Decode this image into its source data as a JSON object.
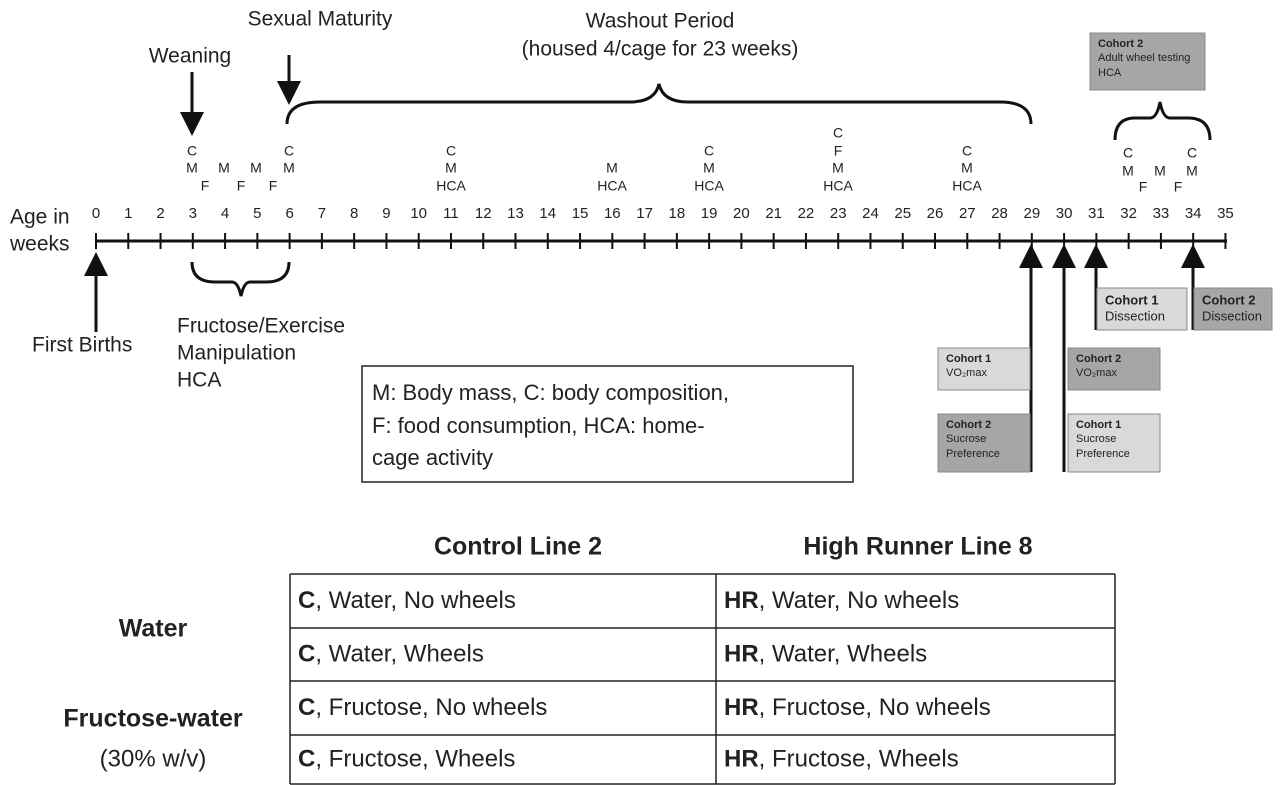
{
  "timeline": {
    "axis_label": [
      "Age in",
      "weeks"
    ],
    "weeks": [
      0,
      1,
      2,
      3,
      4,
      5,
      6,
      7,
      8,
      9,
      10,
      11,
      12,
      13,
      14,
      15,
      16,
      17,
      18,
      19,
      20,
      21,
      22,
      23,
      24,
      25,
      26,
      27,
      28,
      29,
      30,
      31,
      32,
      33,
      34,
      35
    ]
  },
  "events": {
    "weaning": "Weaning",
    "sexual_maturity": "Sexual Maturity",
    "first_births": "First Births",
    "washout": {
      "title": "Washout Period",
      "note": "(housed 4/cage for 23 weeks)"
    },
    "manipulation": [
      "Fructose/Exercise",
      "Manipulation",
      "HCA"
    ]
  },
  "measures": [
    [
      "C",
      "M"
    ],
    [
      "F"
    ],
    [
      "M"
    ],
    [
      "F"
    ],
    [
      "M"
    ],
    [
      "F"
    ],
    [
      "C",
      "M"
    ],
    [
      "C",
      "M",
      "HCA"
    ],
    [
      "M",
      "HCA"
    ],
    [
      "C",
      "M",
      "HCA"
    ],
    [
      "C",
      "F",
      "M",
      "HCA"
    ],
    [
      "C",
      "M",
      "HCA"
    ],
    [
      "C",
      "M"
    ],
    [
      "F"
    ],
    [
      "M"
    ],
    [
      "F"
    ],
    [
      "C",
      "M"
    ]
  ],
  "cohort_boxes": [
    {
      "title": "Cohort 2",
      "lines": [
        "Adult wheel testing",
        "HCA"
      ]
    },
    {
      "title": "Cohort 1",
      "lines": [
        "Dissection"
      ]
    },
    {
      "title": "Cohort 2",
      "lines": [
        "Dissection"
      ]
    },
    {
      "title": "Cohort 1",
      "lines": [
        "VO₂max"
      ]
    },
    {
      "title": "Cohort 2",
      "lines": [
        "VO₂max"
      ]
    },
    {
      "title": "Cohort 2",
      "lines": [
        "Sucrose",
        "Preference"
      ]
    },
    {
      "title": "Cohort 1",
      "lines": [
        "Sucrose",
        "Preference"
      ]
    }
  ],
  "legend": [
    "M: Body mass, C: body composition,",
    "F: food consumption, HCA: home-",
    "cage activity"
  ],
  "table": {
    "columns": [
      "Control Line 2",
      "High Runner Line 8"
    ],
    "row_groups": [
      {
        "label": "Water"
      },
      {
        "label": "Fructose-water",
        "note": "(30% w/v)"
      }
    ],
    "rows": [
      [
        {
          "bold": "C",
          "text": ", Water, No wheels"
        },
        {
          "bold": "HR",
          "text": ", Water, No wheels"
        }
      ],
      [
        {
          "bold": "C",
          "text": ", Water, Wheels"
        },
        {
          "bold": "HR",
          "text": ", Water, Wheels"
        }
      ],
      [
        {
          "bold": "C",
          "text": ", Fructose, No wheels"
        },
        {
          "bold": "HR",
          "text": ", Fructose, No wheels"
        }
      ],
      [
        {
          "bold": "C",
          "text": ", Fructose, Wheels"
        },
        {
          "bold": "HR",
          "text": ", Fructose, Wheels"
        }
      ]
    ]
  }
}
